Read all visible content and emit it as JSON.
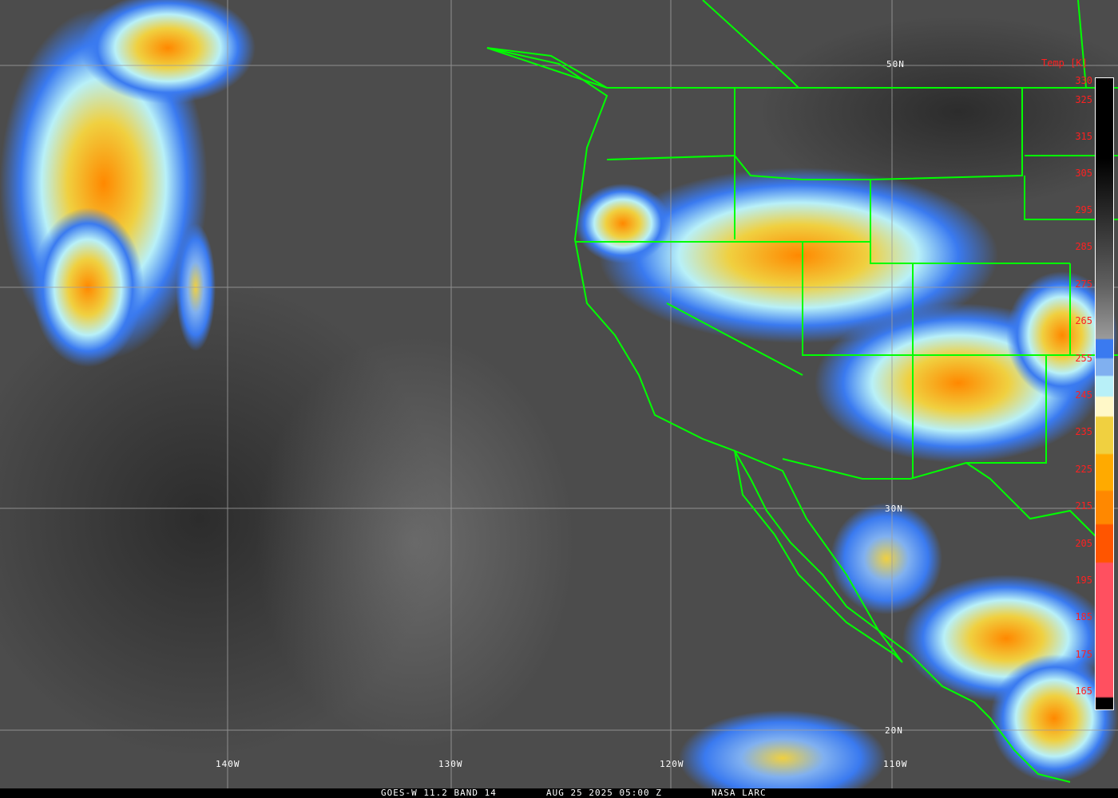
{
  "map": {
    "latitude_labels": [
      "50N",
      "30N",
      "20N"
    ],
    "longitude_labels": [
      "140W",
      "130W",
      "120W",
      "110W"
    ],
    "coastline_color": "#00ff00",
    "grid_color": "#a0a0a0"
  },
  "legend": {
    "title": "Temp [K]",
    "ticks": [
      "330",
      "325",
      "315",
      "305",
      "295",
      "285",
      "275",
      "265",
      "255",
      "245",
      "235",
      "225",
      "215",
      "205",
      "195",
      "185",
      "175",
      "165"
    ],
    "colors": [
      "#000000",
      "#9a9a9a",
      "#3a7af0",
      "#80b0f0",
      "#b8f0f8",
      "#fff8c8",
      "#f0d040",
      "#ffaa00",
      "#ff8800",
      "#ff5500",
      "#ff5060"
    ]
  },
  "footer": {
    "satellite": "GOES-W 11.2 BAND 14",
    "datetime": "AUG 25 2025 05:00 Z",
    "credit": "NASA LARC"
  }
}
